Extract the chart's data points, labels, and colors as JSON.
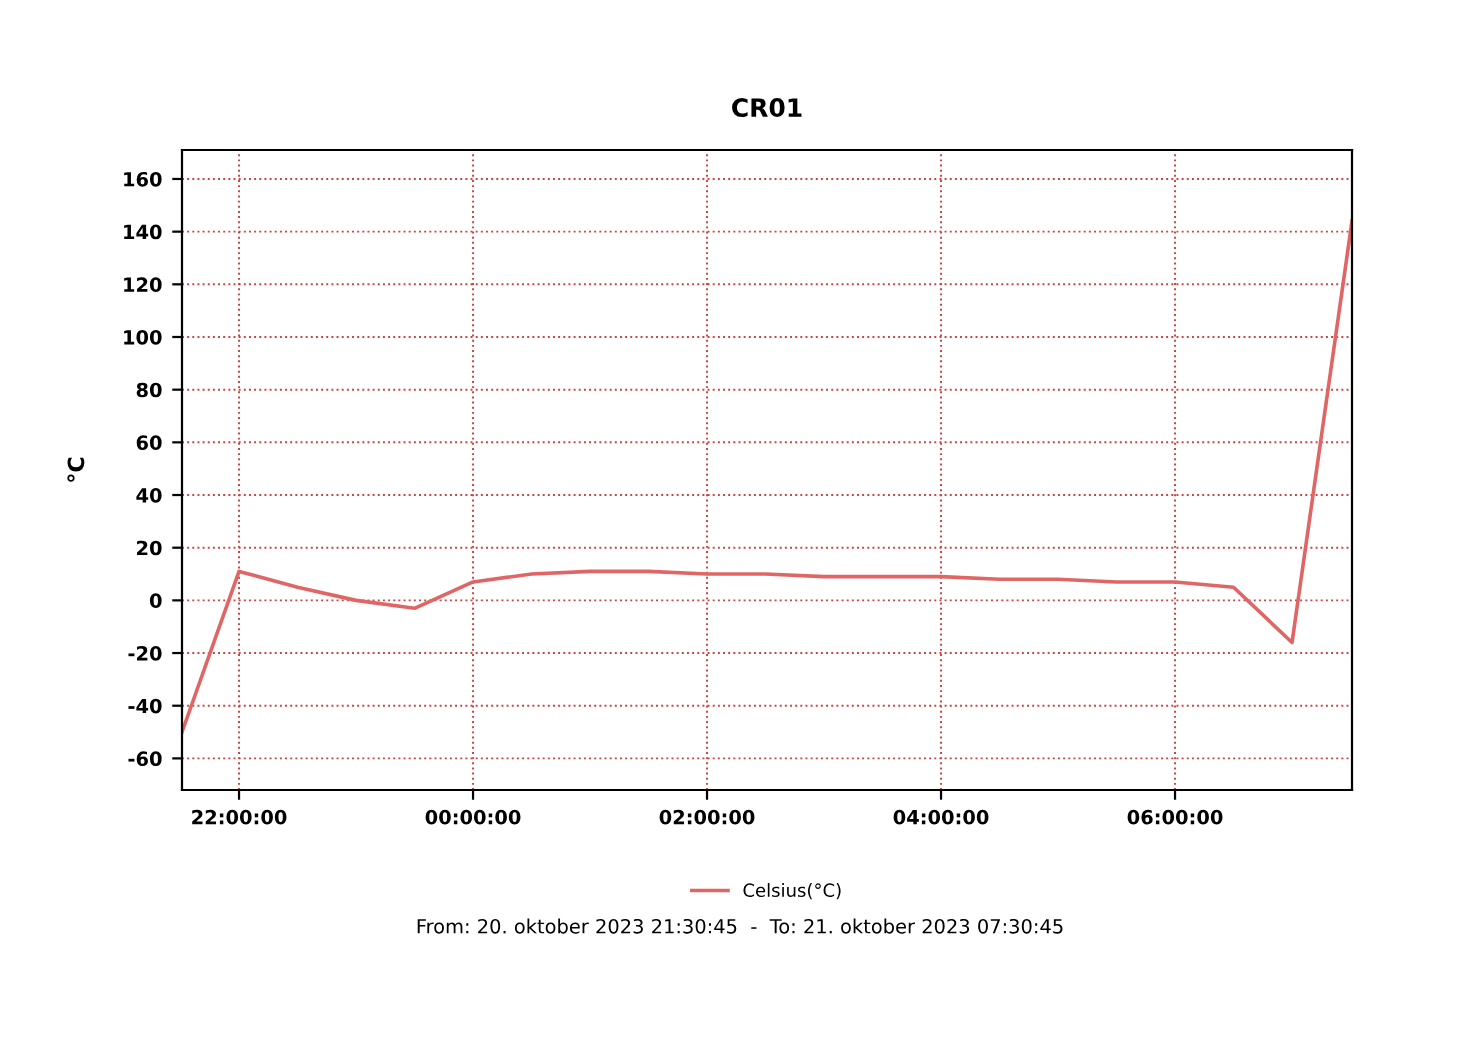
{
  "chart_data": {
    "type": "line",
    "title": "CR01",
    "ylabel": "°C",
    "x": [
      "2023-10-20T21:30:45",
      "2023-10-20T22:00",
      "2023-10-20T22:30",
      "2023-10-20T23:00",
      "2023-10-20T23:30",
      "2023-10-21T00:00",
      "2023-10-21T00:30",
      "2023-10-21T01:00",
      "2023-10-21T01:30",
      "2023-10-21T02:00",
      "2023-10-21T02:30",
      "2023-10-21T03:00",
      "2023-10-21T03:30",
      "2023-10-21T04:00",
      "2023-10-21T04:30",
      "2023-10-21T05:00",
      "2023-10-21T05:30",
      "2023-10-21T06:00",
      "2023-10-21T06:30",
      "2023-10-21T07:00",
      "2023-10-21T07:30:45"
    ],
    "series": [
      {
        "name": "Celsius(°C)",
        "color": "#e06666",
        "values": [
          -50,
          11,
          5,
          0,
          -3,
          7,
          10,
          11,
          11,
          10,
          10,
          9,
          9,
          9,
          8,
          8,
          7,
          7,
          5,
          -16,
          144
        ]
      }
    ],
    "xlim": [
      "2023-10-20T21:30:45",
      "2023-10-21T07:30:45"
    ],
    "xticks": [
      {
        "value": "2023-10-20T22:00",
        "label": "22:00:00"
      },
      {
        "value": "2023-10-21T00:00",
        "label": "00:00:00"
      },
      {
        "value": "2023-10-21T02:00",
        "label": "02:00:00"
      },
      {
        "value": "2023-10-21T04:00",
        "label": "04:00:00"
      },
      {
        "value": "2023-10-21T06:00",
        "label": "06:00:00"
      }
    ],
    "ylim": [
      -72,
      171
    ],
    "yticks": [
      -60,
      -40,
      -20,
      0,
      20,
      40,
      60,
      80,
      100,
      120,
      140,
      160
    ],
    "grid": true,
    "legend": "bottom",
    "marker": "none",
    "line_style": "solid",
    "annotations": [
      "From: 20. oktober 2023 21:30:45  -  To: 21. oktober 2023 07:30:45"
    ]
  }
}
